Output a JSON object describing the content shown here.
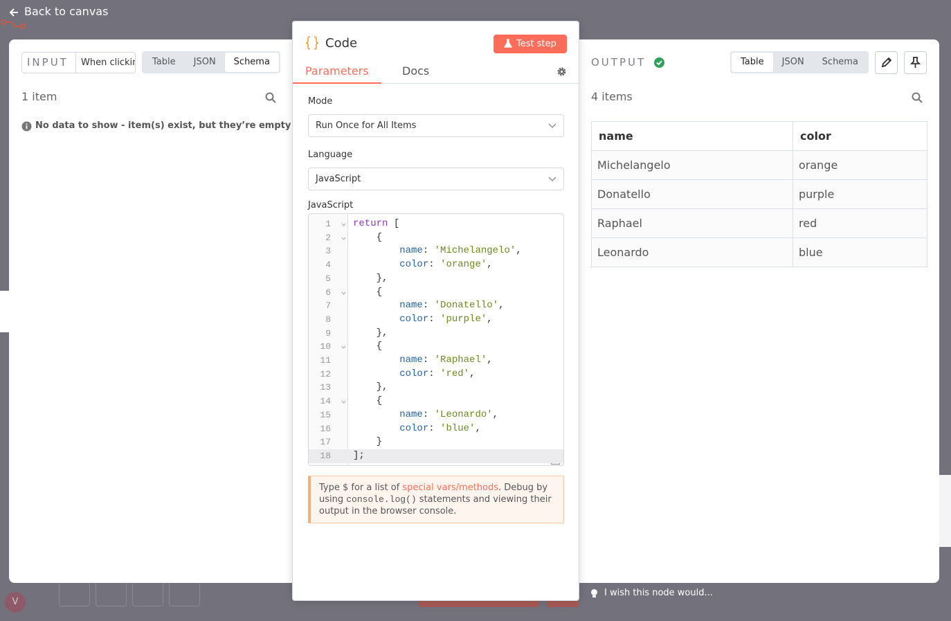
{
  "header": {
    "back_link": "Back to canvas"
  },
  "input_panel": {
    "label": "INPUT",
    "trigger": "When clickin",
    "tabs": [
      "Table",
      "JSON",
      "Schema"
    ],
    "active_tab": "Schema",
    "item_count": "1 item",
    "notice": "No data to show - item(s) exist, but they’re empty"
  },
  "node_panel": {
    "title": "Code",
    "test_button": "Test step",
    "tabs": [
      "Parameters",
      "Docs"
    ],
    "active_tab": "Parameters",
    "fields": [
      {
        "label": "Mode",
        "value": "Run Once for All Items"
      },
      {
        "label": "Language",
        "value": "JavaScript"
      }
    ],
    "editor": {
      "label": "JavaScript",
      "lines": [
        {
          "number": 1,
          "text": "return ["
        },
        {
          "number": 2,
          "text": "    {"
        },
        {
          "number": 3,
          "text": "        name: 'Michelangelo',"
        },
        {
          "number": 4,
          "text": "        color: 'orange',"
        },
        {
          "number": 5,
          "text": "    },"
        },
        {
          "number": 6,
          "text": "    {"
        },
        {
          "number": 7,
          "text": "        name: 'Donatello',"
        },
        {
          "number": 8,
          "text": "        color: 'purple',"
        },
        {
          "number": 9,
          "text": "    },"
        },
        {
          "number": 10,
          "text": "    {"
        },
        {
          "number": 11,
          "text": "        name: 'Raphael',"
        },
        {
          "number": 12,
          "text": "        color: 'red',"
        },
        {
          "number": 13,
          "text": "    },"
        },
        {
          "number": 14,
          "text": "    {"
        },
        {
          "number": 15,
          "text": "        name: 'Leonardo',"
        },
        {
          "number": 16,
          "text": "        color: 'blue',"
        },
        {
          "number": 17,
          "text": "    }"
        },
        {
          "number": 18,
          "text": "];"
        }
      ]
    },
    "hint": {
      "part1": "Type $ for a list of ",
      "link": "special vars/methods",
      "part2": ". Debug by using ",
      "code": "console.log()",
      "part3": " statements and viewing their output in the browser console."
    }
  },
  "output_panel": {
    "label": "OUTPUT",
    "tabs": [
      "Table",
      "JSON",
      "Schema"
    ],
    "active_tab": "Table",
    "item_count": "4 items",
    "table": {
      "columns": [
        "name",
        "color"
      ],
      "rows": [
        [
          "Michelangelo",
          "orange"
        ],
        [
          "Donatello",
          "purple"
        ],
        [
          "Raphael",
          "red"
        ],
        [
          "Leonardo",
          "blue"
        ]
      ]
    }
  },
  "footer": {
    "feedback": "I wish this node would...",
    "avatar": "V"
  }
}
